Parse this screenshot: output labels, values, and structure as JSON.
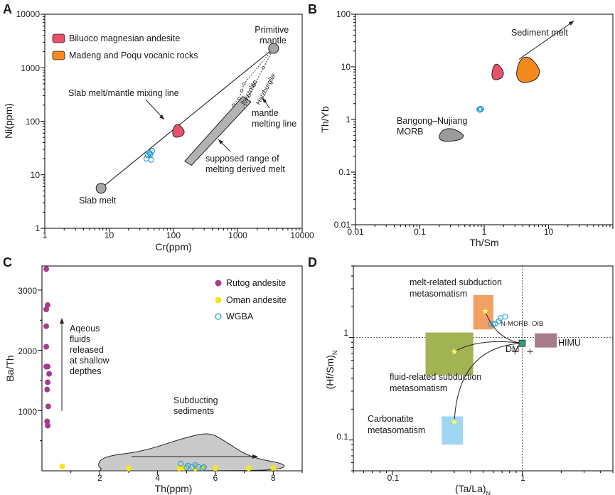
{
  "chart_data": [
    {
      "panel": "A",
      "type": "scatter",
      "xscale": "log",
      "yscale": "log",
      "xlim": [
        1,
        10000
      ],
      "ylim": [
        1,
        10000
      ],
      "xlabel": "Cr(ppm)",
      "ylabel": "Ni(ppm)",
      "x_ticks": [
        "1",
        "10",
        "100",
        "1000",
        "10000"
      ],
      "y_ticks": [
        "1",
        "10",
        "100",
        "1000",
        "10000"
      ],
      "legend": [
        {
          "label": "Biluoco magnesian andesite",
          "color": "#e8516a"
        },
        {
          "label": "Madeng and Poqu vocanic rocks",
          "color": "#f28a1d"
        }
      ],
      "end_members": [
        {
          "name": "Slab  melt",
          "x": 7.5,
          "y": 5.6
        },
        {
          "name": "Primitive mantle",
          "x": 3600,
          "y": 2300
        }
      ],
      "mixing_line_label": "Slab  melt/mantle mixing line",
      "melting_line_label": "mantle melting line",
      "melting_curves": [
        {
          "name": "lherzolite",
          "points": [
            [
              3600,
              2300
            ],
            [
              1250,
              500
            ],
            [
              1150,
              370
            ],
            [
              1050,
              270
            ],
            [
              850,
              200
            ]
          ]
        },
        {
          "name": "Halzburgite",
          "points": [
            [
              3600,
              2300
            ],
            [
              2500,
              1000
            ],
            [
              1800,
              470
            ],
            [
              1500,
              300
            ],
            [
              1300,
              190
            ]
          ]
        }
      ],
      "range_label": "supposed range of\nmelting derived melt",
      "range_band": [
        [
          1200,
          290
        ],
        [
          1600,
          230
        ],
        [
          190,
          15
        ],
        [
          150,
          18
        ]
      ],
      "wgba": [
        [
          38,
          20
        ],
        [
          40,
          23
        ],
        [
          42,
          26
        ],
        [
          44,
          24
        ],
        [
          45,
          19
        ],
        [
          47,
          28
        ],
        [
          43,
          25
        ]
      ],
      "biluoco_blob_center": [
        118,
        65
      ]
    },
    {
      "panel": "B",
      "type": "scatter",
      "xscale": "log",
      "yscale": "log",
      "xlim": [
        0.01,
        100
      ],
      "ylim": [
        0.01,
        100
      ],
      "xlabel": "Th/Sm",
      "ylabel": "Th/Yb",
      "x_ticks": [
        "0.01",
        "0.1",
        "1",
        "10"
      ],
      "y_ticks": [
        "0.01",
        "0.1",
        "1",
        "10",
        "100"
      ],
      "annotations": [
        "Sediment melt",
        "Bangong–Nujiang\nMORB"
      ],
      "wgba": [
        [
          0.84,
          1.55
        ],
        [
          0.88,
          1.6
        ],
        [
          0.86,
          1.52
        ],
        [
          0.9,
          1.58
        ]
      ],
      "morb_center": [
        0.3,
        0.5
      ],
      "biluoco_center": [
        1.6,
        7.8
      ],
      "madeng_center": [
        4.7,
        8.5
      ],
      "arrow": {
        "from": [
          3.5,
          14
        ],
        "to": [
          25,
          75
        ]
      }
    },
    {
      "panel": "C",
      "type": "scatter",
      "xlim": [
        0,
        9
      ],
      "ylim": [
        0,
        3400
      ],
      "xlabel": "Th(ppm)",
      "ylabel": "Ba/Th",
      "x_ticks": [
        "2",
        "4",
        "6",
        "8"
      ],
      "y_ticks": [
        "1000",
        "2000",
        "3000"
      ],
      "legend": [
        {
          "label": "Rutog andesite",
          "color": "#a43d8c"
        },
        {
          "label": "Oman andesite",
          "color": "#f2e61e"
        },
        {
          "label": "WGBA",
          "color": "#2a9ed6"
        }
      ],
      "rutog": [
        [
          0.05,
          3350
        ],
        [
          0.1,
          2750
        ],
        [
          0.05,
          2680
        ],
        [
          0.05,
          2400
        ],
        [
          0.05,
          2060
        ],
        [
          0.05,
          1730
        ],
        [
          0.1,
          1730
        ],
        [
          0.15,
          1610
        ],
        [
          0.1,
          1470
        ],
        [
          0.08,
          1350
        ],
        [
          0.12,
          1070
        ],
        [
          0.08,
          820
        ],
        [
          0.1,
          750
        ]
      ],
      "oman": [
        [
          0.7,
          50
        ],
        [
          3.0,
          20
        ],
        [
          4.75,
          20
        ],
        [
          4.9,
          25
        ],
        [
          5.3,
          18
        ],
        [
          5.55,
          30
        ],
        [
          6.0,
          20
        ],
        [
          7.15,
          20
        ],
        [
          8.0,
          25
        ]
      ],
      "wgba": [
        [
          4.8,
          120
        ],
        [
          5.05,
          85
        ],
        [
          5.2,
          65
        ],
        [
          5.3,
          95
        ],
        [
          5.4,
          70
        ],
        [
          5.55,
          45
        ],
        [
          5.6,
          60
        ],
        [
          5.0,
          55
        ]
      ],
      "annotations": [
        "Aqeous\nfluids\nreleased\nat shallow\ndepthes",
        "Subducting\nsediments"
      ]
    },
    {
      "panel": "D",
      "type": "scatter",
      "xscale": "log",
      "yscale": "log",
      "xlim": [
        0.05,
        5
      ],
      "ylim": [
        0.05,
        5
      ],
      "xlabel": "(Ta/La)",
      "xlabel_sub": "N",
      "ylabel": "(Hf/Sm)",
      "ylabel_sub": "N",
      "x_ticks": [
        "0.1",
        "1"
      ],
      "y_ticks": [
        "0.1",
        "1"
      ],
      "fields": [
        {
          "name": "melt-related subduction\nmetasomatism",
          "color": "#f2a064",
          "x": [
            0.42,
            0.6
          ],
          "y": [
            1.2,
            2.6
          ],
          "star": [
            0.52,
            1.8
          ]
        },
        {
          "name": "fluid-related subduction\nmetasomatism",
          "color": "#a2b354",
          "x": [
            0.18,
            0.42
          ],
          "y": [
            0.43,
            1.12
          ],
          "star": [
            0.3,
            0.73
          ]
        },
        {
          "name": "Carbonatite\nmetasomatism",
          "color": "#9fd6f2",
          "x": [
            0.24,
            0.35
          ],
          "y": [
            0.09,
            0.17
          ],
          "star": [
            0.3,
            0.15
          ]
        },
        {
          "name": "HIMU",
          "color": "#a77d89",
          "x": [
            1.25,
            1.85
          ],
          "y": [
            0.8,
            1.1
          ]
        }
      ],
      "points": [
        {
          "name": "DM",
          "x": 1.0,
          "y": 0.88,
          "color": "#3a9a7a"
        },
        {
          "name": "N-MORB",
          "x": 0.88,
          "y": 0.96
        },
        {
          "name": "OIB",
          "x": 1.15,
          "y": 0.96
        }
      ],
      "wgba": [
        [
          0.57,
          1.35
        ],
        [
          0.6,
          1.35
        ],
        [
          0.62,
          1.37
        ],
        [
          0.66,
          1.45
        ],
        [
          0.68,
          1.55
        ],
        [
          0.74,
          1.6
        ]
      ]
    }
  ]
}
